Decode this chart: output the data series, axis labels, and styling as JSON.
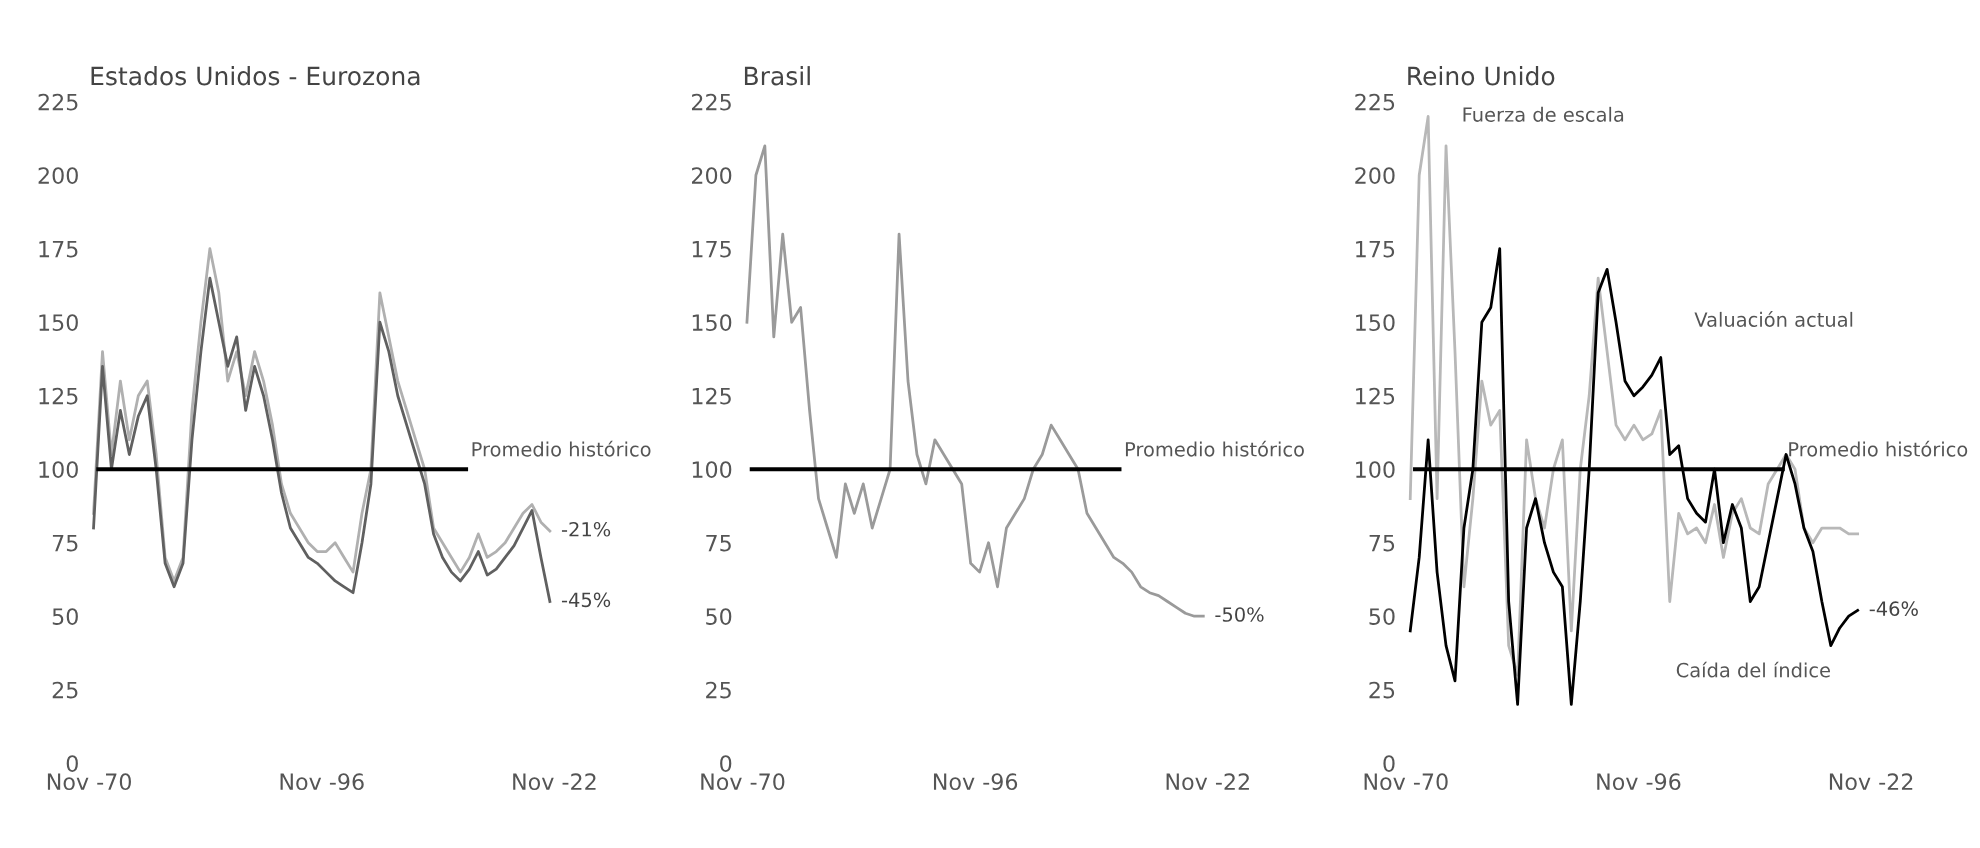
{
  "chart_data": [
    {
      "type": "line",
      "title": "Estados Unidos - Eurozona",
      "xlim": [
        "1970-11",
        "2022-11"
      ],
      "ylim": [
        0,
        225
      ],
      "yticks": [
        0,
        25,
        50,
        75,
        100,
        125,
        150,
        175,
        200,
        225
      ],
      "xticks": [
        {
          "value": "1970-11",
          "label": "Nov -70"
        },
        {
          "value": "1996-11",
          "label": "Nov -96"
        },
        {
          "value": "2022-11",
          "label": "Nov -22"
        }
      ],
      "grid": false,
      "line_style": "solid",
      "x": [
        "1971-05",
        "1972-05",
        "1973-05",
        "1974-05",
        "1975-05",
        "1976-05",
        "1977-05",
        "1978-05",
        "1979-05",
        "1980-05",
        "1981-05",
        "1982-05",
        "1983-05",
        "1984-05",
        "1985-05",
        "1986-05",
        "1987-05",
        "1988-05",
        "1989-05",
        "1990-05",
        "1991-05",
        "1992-05",
        "1993-05",
        "1994-05",
        "1995-05",
        "1996-05",
        "1997-05",
        "1998-05",
        "1999-05",
        "2000-05",
        "2001-05",
        "2002-05",
        "2003-05",
        "2004-05",
        "2005-05",
        "2006-05",
        "2007-05",
        "2008-05",
        "2009-05",
        "2010-05",
        "2011-05",
        "2012-05",
        "2013-05",
        "2014-05",
        "2015-05",
        "2016-05",
        "2017-05",
        "2018-05",
        "2019-05",
        "2020-05",
        "2021-05",
        "2022-05"
      ],
      "series": [
        {
          "color": "#b0b0b0",
          "values": [
            85,
            140,
            105,
            130,
            110,
            125,
            130,
            105,
            70,
            62,
            70,
            120,
            150,
            175,
            160,
            130,
            140,
            125,
            140,
            130,
            115,
            95,
            85,
            80,
            75,
            72,
            72,
            75,
            70,
            65,
            85,
            100,
            160,
            145,
            130,
            120,
            110,
            100,
            80,
            75,
            70,
            65,
            70,
            78,
            70,
            72,
            75,
            80,
            85,
            88,
            82,
            79
          ]
        },
        {
          "color": "#606060",
          "values": [
            80,
            135,
            100,
            120,
            105,
            118,
            125,
            100,
            68,
            60,
            68,
            110,
            140,
            165,
            150,
            135,
            145,
            120,
            135,
            125,
            110,
            92,
            80,
            75,
            70,
            68,
            65,
            62,
            60,
            58,
            75,
            95,
            150,
            140,
            125,
            115,
            105,
            95,
            78,
            70,
            65,
            62,
            66,
            72,
            64,
            66,
            70,
            74,
            80,
            86,
            70,
            55
          ]
        }
      ],
      "ref_lines": [
        {
          "axis": "y",
          "value": 100,
          "label": "Promedio histórico",
          "color": "#000000"
        }
      ],
      "annotations": [
        {
          "text": "-21%",
          "x": "2022-05",
          "y": 79
        },
        {
          "text": "-45%",
          "x": "2022-05",
          "y": 55
        }
      ]
    },
    {
      "type": "line",
      "title": "Brasil",
      "xlim": [
        "1970-11",
        "2022-11"
      ],
      "ylim": [
        0,
        225
      ],
      "yticks": [
        0,
        25,
        50,
        75,
        100,
        125,
        150,
        175,
        200,
        225
      ],
      "xticks": [
        {
          "value": "1970-11",
          "label": "Nov -70"
        },
        {
          "value": "1996-11",
          "label": "Nov -96"
        },
        {
          "value": "2022-11",
          "label": "Nov -22"
        }
      ],
      "grid": false,
      "line_style": "solid",
      "x": [
        "1971-05",
        "1972-05",
        "1973-05",
        "1974-05",
        "1975-05",
        "1976-05",
        "1977-05",
        "1978-05",
        "1979-05",
        "1980-05",
        "1981-05",
        "1982-05",
        "1983-05",
        "1984-05",
        "1985-05",
        "1986-05",
        "1987-05",
        "1988-05",
        "1989-05",
        "1990-05",
        "1991-05",
        "1992-05",
        "1993-05",
        "1994-05",
        "1995-05",
        "1996-05",
        "1997-05",
        "1998-05",
        "1999-05",
        "2000-05",
        "2001-05",
        "2002-05",
        "2003-05",
        "2004-05",
        "2005-05",
        "2006-05",
        "2007-05",
        "2008-05",
        "2009-05",
        "2010-05",
        "2011-05",
        "2012-05",
        "2013-05",
        "2014-05",
        "2015-05",
        "2016-05",
        "2017-05",
        "2018-05",
        "2019-05",
        "2020-05",
        "2021-05",
        "2022-05"
      ],
      "series": [
        {
          "color": "#9a9a9a",
          "values": [
            150,
            200,
            210,
            145,
            180,
            150,
            155,
            120,
            90,
            80,
            70,
            95,
            85,
            95,
            80,
            90,
            100,
            180,
            130,
            105,
            95,
            110,
            105,
            100,
            95,
            68,
            65,
            75,
            60,
            80,
            85,
            90,
            100,
            105,
            115,
            110,
            105,
            100,
            85,
            80,
            75,
            70,
            68,
            65,
            60,
            58,
            57,
            55,
            53,
            51,
            50,
            50
          ]
        }
      ],
      "ref_lines": [
        {
          "axis": "y",
          "value": 100,
          "label": "Promedio histórico",
          "color": "#000000"
        }
      ],
      "annotations": [
        {
          "text": "-50%",
          "x": "2022-05",
          "y": 50
        }
      ]
    },
    {
      "type": "line",
      "title": "Reino Unido",
      "xlim": [
        "1970-11",
        "2022-11"
      ],
      "ylim": [
        0,
        225
      ],
      "yticks": [
        0,
        25,
        50,
        75,
        100,
        125,
        150,
        175,
        200,
        225
      ],
      "xticks": [
        {
          "value": "1970-11",
          "label": "Nov -70"
        },
        {
          "value": "1996-11",
          "label": "Nov -96"
        },
        {
          "value": "2022-11",
          "label": "Nov -22"
        }
      ],
      "grid": false,
      "line_style": "solid",
      "x": [
        "1971-05",
        "1972-05",
        "1973-05",
        "1974-05",
        "1975-05",
        "1976-05",
        "1977-05",
        "1978-05",
        "1979-05",
        "1980-05",
        "1981-05",
        "1982-05",
        "1983-05",
        "1984-05",
        "1985-05",
        "1986-05",
        "1987-05",
        "1988-05",
        "1989-05",
        "1990-05",
        "1991-05",
        "1992-05",
        "1993-05",
        "1994-05",
        "1995-05",
        "1996-05",
        "1997-05",
        "1998-05",
        "1999-05",
        "2000-05",
        "2001-05",
        "2002-05",
        "2003-05",
        "2004-05",
        "2005-05",
        "2006-05",
        "2007-05",
        "2008-05",
        "2009-05",
        "2010-05",
        "2011-05",
        "2012-05",
        "2013-05",
        "2014-05",
        "2015-05",
        "2016-05",
        "2017-05",
        "2018-05",
        "2019-05",
        "2020-05",
        "2021-05"
      ],
      "series": [
        {
          "color": "#b8b8b8",
          "values": [
            90,
            200,
            220,
            90,
            210,
            140,
            60,
            90,
            130,
            115,
            120,
            40,
            30,
            110,
            90,
            80,
            100,
            110,
            45,
            100,
            125,
            165,
            140,
            115,
            110,
            115,
            110,
            112,
            120,
            55,
            85,
            78,
            80,
            75,
            88,
            70,
            85,
            90,
            80,
            78,
            95,
            100,
            105,
            100,
            80,
            75,
            80,
            80,
            80,
            78,
            78
          ]
        },
        {
          "color": "#000000",
          "values": [
            45,
            70,
            110,
            65,
            40,
            28,
            80,
            100,
            150,
            155,
            175,
            55,
            20,
            80,
            90,
            75,
            65,
            60,
            20,
            55,
            100,
            160,
            168,
            150,
            130,
            125,
            128,
            132,
            138,
            105,
            108,
            90,
            85,
            82,
            100,
            75,
            88,
            80,
            55,
            60,
            75,
            90,
            105,
            95,
            80,
            72,
            55,
            40,
            46,
            50,
            52
          ]
        }
      ],
      "ref_lines": [
        {
          "axis": "y",
          "value": 100,
          "label": "Promedio histórico",
          "color": "#000000"
        }
      ],
      "annotations": [
        "Fuerza de escala",
        "Valuación actual",
        "Caída del índice",
        {
          "text": "-46%",
          "x": "2021-05",
          "y": 52
        }
      ]
    }
  ]
}
